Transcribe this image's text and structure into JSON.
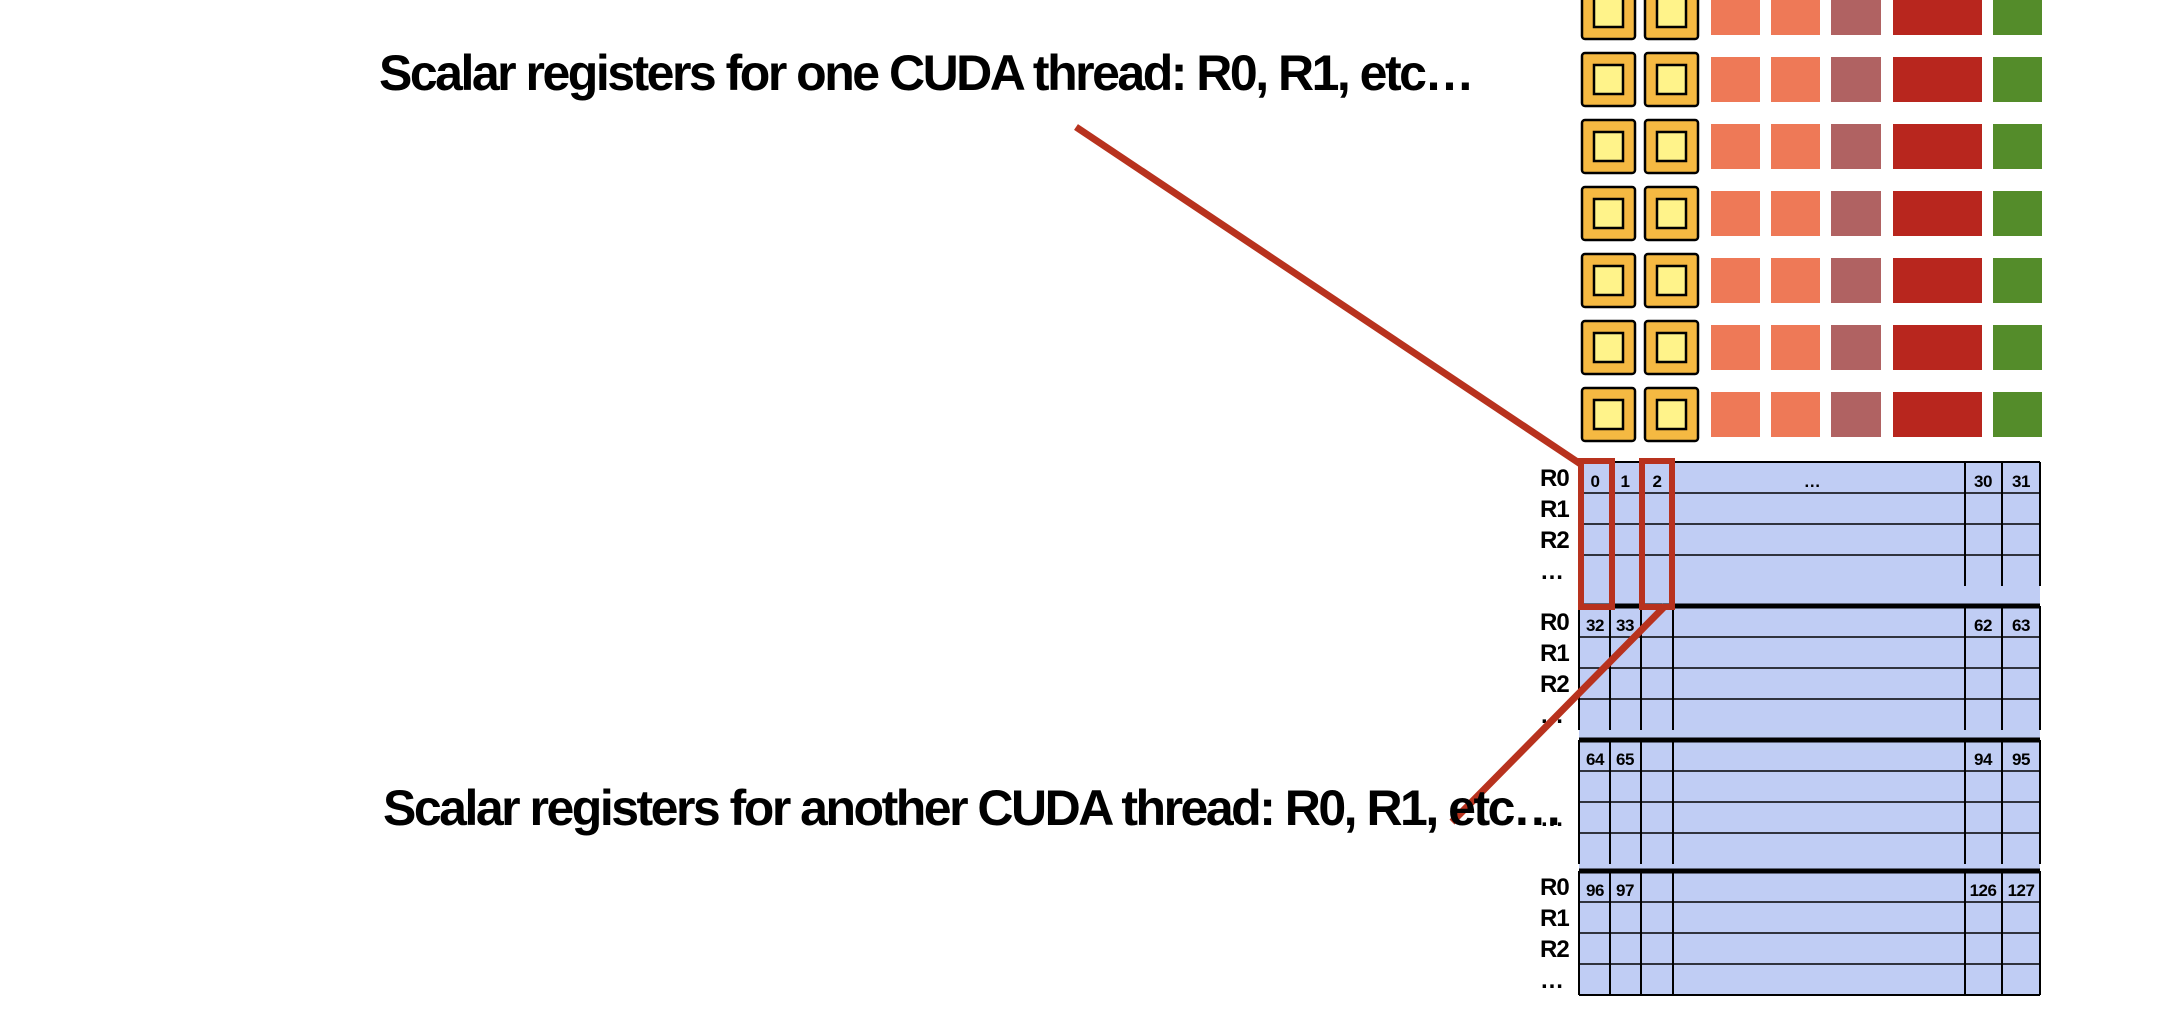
{
  "captions": {
    "top": "Scalar registers for one CUDA thread: R0, R1, etc…",
    "bottom": "Scalar registers for another CUDA thread: R0, R1, etc…"
  },
  "register_blocks": [
    {
      "rows": [
        "R0",
        "R1",
        "R2",
        "…"
      ],
      "headers": [
        "0",
        "1",
        "2",
        "…",
        "30",
        "31"
      ]
    },
    {
      "rows": [
        "R0",
        "R1",
        "R2",
        "…"
      ],
      "headers": [
        "32",
        "33",
        "",
        "",
        "62",
        "63"
      ]
    },
    {
      "rows": [
        "",
        "",
        "…",
        ""
      ],
      "headers": [
        "64",
        "65",
        "",
        "",
        "94",
        "95"
      ]
    },
    {
      "rows": [
        "R0",
        "R1",
        "R2",
        "…"
      ],
      "headers": [
        "96",
        "97",
        "",
        "",
        "126",
        "127"
      ]
    }
  ],
  "unit_strip": {
    "row_count": 7,
    "colors": {
      "core_outer": "#f5b942",
      "core_inner": "#fff38a",
      "unit_a": "#ee7957",
      "unit_b": "#b06262",
      "unit_c": "#b8261e",
      "unit_d": "#548c2a"
    }
  },
  "colors": {
    "register_fill": "#c0cdf4",
    "callout": "#b8321e"
  }
}
